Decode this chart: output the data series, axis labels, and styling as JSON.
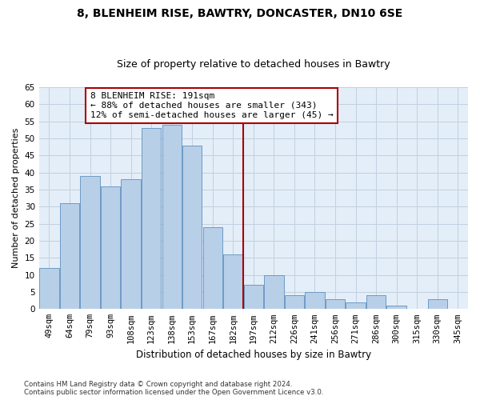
{
  "title1": "8, BLENHEIM RISE, BAWTRY, DONCASTER, DN10 6SE",
  "title2": "Size of property relative to detached houses in Bawtry",
  "xlabel": "Distribution of detached houses by size in Bawtry",
  "ylabel": "Number of detached properties",
  "categories": [
    "49sqm",
    "64sqm",
    "79sqm",
    "93sqm",
    "108sqm",
    "123sqm",
    "138sqm",
    "153sqm",
    "167sqm",
    "182sqm",
    "197sqm",
    "212sqm",
    "226sqm",
    "241sqm",
    "256sqm",
    "271sqm",
    "286sqm",
    "300sqm",
    "315sqm",
    "330sqm",
    "345sqm"
  ],
  "values": [
    12,
    31,
    39,
    36,
    38,
    53,
    54,
    48,
    24,
    16,
    7,
    10,
    4,
    5,
    3,
    2,
    4,
    1,
    0,
    3,
    0
  ],
  "bar_color": "#b8cfe8",
  "bar_edge_color": "#6090c0",
  "vline_index": 10,
  "vline_color": "#aa0000",
  "annotation_text": "8 BLENHEIM RISE: 191sqm\n← 88% of detached houses are smaller (343)\n12% of semi-detached houses are larger (45) →",
  "ylim": [
    0,
    65
  ],
  "yticks": [
    0,
    5,
    10,
    15,
    20,
    25,
    30,
    35,
    40,
    45,
    50,
    55,
    60,
    65
  ],
  "grid_color": "#c0d0e0",
  "bg_color": "#e4eef8",
  "footnote": "Contains HM Land Registry data © Crown copyright and database right 2024.\nContains public sector information licensed under the Open Government Licence v3.0.",
  "title1_fontsize": 10,
  "title2_fontsize": 9,
  "xlabel_fontsize": 8.5,
  "ylabel_fontsize": 8,
  "tick_fontsize": 7.5,
  "annot_fontsize": 8
}
